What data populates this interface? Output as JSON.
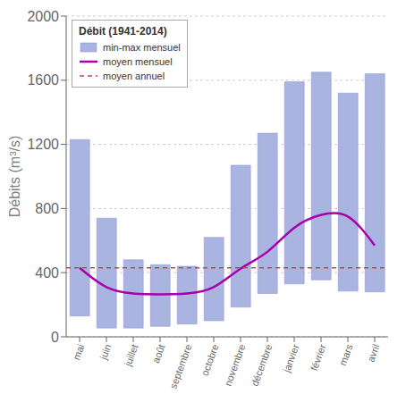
{
  "chart_data": {
    "type": "bar",
    "categories": [
      "mai",
      "juin",
      "juillet",
      "août",
      "septembre",
      "octobre",
      "novembre",
      "décembre",
      "janvier",
      "février",
      "mars",
      "avril"
    ],
    "series": [
      {
        "name": "min-max mensuel",
        "type": "range_bar",
        "color": "#aab4e0",
        "values": [
          [
            130,
            1230
          ],
          [
            55,
            740
          ],
          [
            55,
            480
          ],
          [
            65,
            450
          ],
          [
            80,
            440
          ],
          [
            100,
            620
          ],
          [
            185,
            1070
          ],
          [
            270,
            1270
          ],
          [
            330,
            1590
          ],
          [
            355,
            1650
          ],
          [
            285,
            1520
          ],
          [
            280,
            1640
          ]
        ]
      },
      {
        "name": "moyen mensuel",
        "type": "line",
        "color": "#aa00aa",
        "line_style": "solid",
        "values": [
          430,
          310,
          270,
          265,
          270,
          310,
          425,
          530,
          680,
          760,
          750,
          570
        ]
      },
      {
        "name": "moyen annuel",
        "type": "hline",
        "color": "#cc4444",
        "line_style": "dashed",
        "value": 430
      }
    ],
    "ylabel": "Débits (m³/s)",
    "ylim": [
      0,
      2000
    ],
    "yticks": [
      0,
      400,
      800,
      1200,
      1600,
      2000
    ],
    "grid": true,
    "legend": "upper left",
    "legend_title": "Débit (1941-2014)"
  }
}
